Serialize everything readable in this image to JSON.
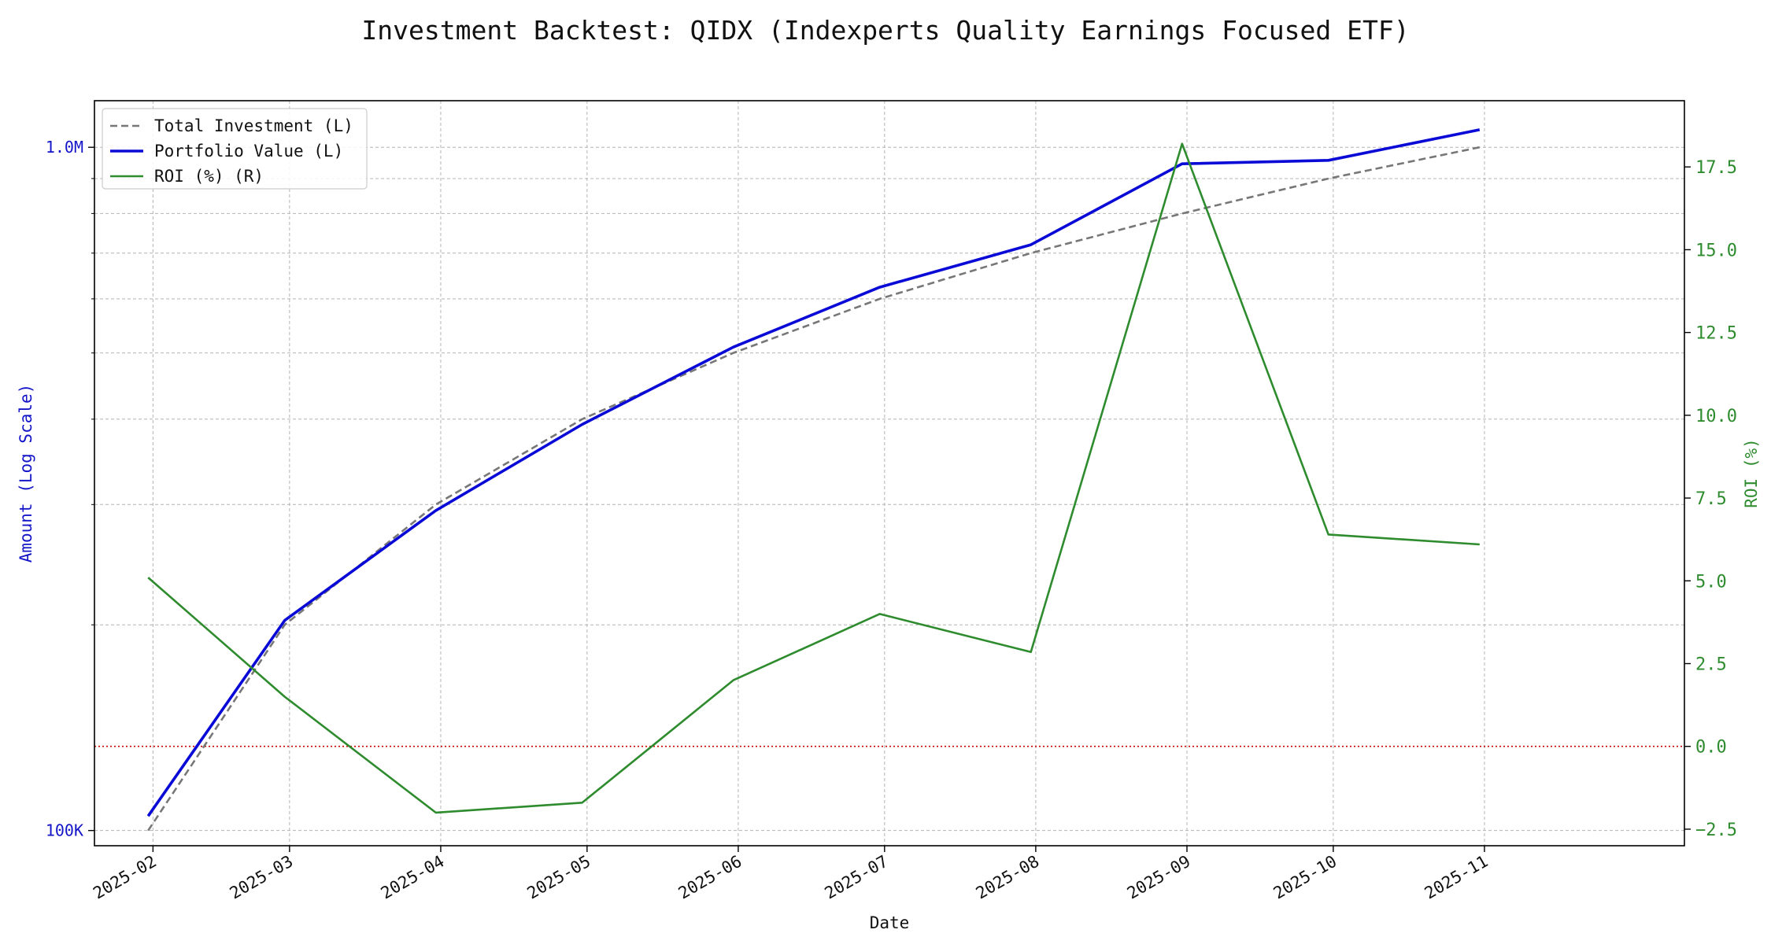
{
  "chart_data": {
    "type": "line",
    "title": "Investment Backtest: QIDX (Indexperts Quality Earnings Focused ETF)",
    "xlabel": "Date",
    "ylabel_left": "Amount (Log Scale)",
    "ylabel_right": "ROI (%)",
    "y_left_scale": "log",
    "y_left_ticks": [
      {
        "value": 100000,
        "label": "100K"
      },
      {
        "value": 1000000,
        "label": "1.0M"
      }
    ],
    "ylim_left": [
      95000,
      1170000
    ],
    "y_right_ticks": [
      {
        "value": -2.5,
        "label": "−2.5"
      },
      {
        "value": 0.0,
        "label": "0.0"
      },
      {
        "value": 2.5,
        "label": "2.5"
      },
      {
        "value": 5.0,
        "label": "5.0"
      },
      {
        "value": 7.5,
        "label": "7.5"
      },
      {
        "value": 10.0,
        "label": "10.0"
      },
      {
        "value": 12.5,
        "label": "12.5"
      },
      {
        "value": 15.0,
        "label": "15.0"
      },
      {
        "value": 17.5,
        "label": "17.5"
      }
    ],
    "ylim_right": [
      -3.0,
      19.5
    ],
    "x_range": [
      "2025-01-20",
      "2025-12-12"
    ],
    "x_ticks": [
      {
        "date": "2025-02-01",
        "label": "2025-02"
      },
      {
        "date": "2025-03-01",
        "label": "2025-03"
      },
      {
        "date": "2025-04-01",
        "label": "2025-04"
      },
      {
        "date": "2025-05-01",
        "label": "2025-05"
      },
      {
        "date": "2025-06-01",
        "label": "2025-06"
      },
      {
        "date": "2025-07-01",
        "label": "2025-07"
      },
      {
        "date": "2025-08-01",
        "label": "2025-08"
      },
      {
        "date": "2025-09-01",
        "label": "2025-09"
      },
      {
        "date": "2025-10-01",
        "label": "2025-10"
      },
      {
        "date": "2025-11-01",
        "label": "2025-11"
      }
    ],
    "x": [
      "2025-01-31",
      "2025-02-28",
      "2025-03-31",
      "2025-04-30",
      "2025-05-31",
      "2025-06-30",
      "2025-07-31",
      "2025-08-31",
      "2025-09-30",
      "2025-10-31"
    ],
    "series": [
      {
        "name": "Total Investment (L)",
        "axis": "left",
        "color": "#777777",
        "style": "dashed",
        "values": [
          100000,
          200000,
          300000,
          400000,
          500000,
          600000,
          700000,
          800000,
          900000,
          1000000
        ]
      },
      {
        "name": "Portfolio Value (L)",
        "axis": "left",
        "color": "#0a0ad6",
        "style": "solid",
        "values": [
          105000,
          203000,
          294000,
          393000,
          510000,
          624000,
          720000,
          946000,
          957000,
          1061000
        ]
      },
      {
        "name": "ROI (%) (R)",
        "axis": "right",
        "color": "#2e8b2e",
        "style": "solid",
        "values": [
          5.1,
          1.5,
          -2.0,
          -1.7,
          2.0,
          4.0,
          2.85,
          18.2,
          6.4,
          6.1
        ]
      }
    ],
    "reference_line": {
      "axis": "right",
      "value": 0.0,
      "color": "#cc0000",
      "style": "dotted"
    },
    "grid": true,
    "legend_position": "top-left",
    "colors": {
      "left_axis": "#1515c8",
      "right_axis": "#2e8b2e",
      "grid": "#b4b4b4"
    }
  }
}
